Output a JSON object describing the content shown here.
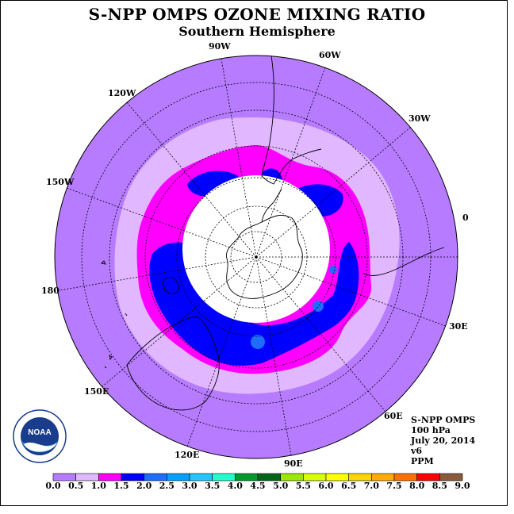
{
  "header": {
    "title": "S-NPP OMPS OZONE MIXING RATIO",
    "subtitle": "Southern Hemisphere"
  },
  "map": {
    "projection": "polar stereographic, south pole centered",
    "longitude_labels": [
      "90W",
      "60W",
      "30W",
      "0",
      "30E",
      "60E",
      "90E",
      "120E",
      "150E",
      "180",
      "150W",
      "120W"
    ],
    "fill_colors": {
      "outer": "#b77bff",
      "ring_0_5": "#e1b7ff",
      "ring_1_0": "#ff00ff",
      "ring_1_5": "#0000ff",
      "ring_2_0": "#1d6dff",
      "no_data": "#ffffff"
    }
  },
  "info": {
    "instrument": "S-NPP OMPS",
    "level": "100 hPa",
    "date": "July 20, 2014",
    "version": "v6",
    "units": "PPM"
  },
  "logo": {
    "text": "NOAA",
    "ring_text": "NATIONAL OCEANIC AND ATMOSPHERIC ADMINISTRATION · U.S. DEPARTMENT OF COMMERCE"
  },
  "colorbar": {
    "labels": [
      "0.0",
      "0.5",
      "1.0",
      "1.5",
      "2.0",
      "2.5",
      "3.0",
      "3.5",
      "4.0",
      "4.5",
      "5.0",
      "5.5",
      "6.0",
      "6.5",
      "7.0",
      "7.5",
      "8.0",
      "8.5",
      "9.0"
    ],
    "colors": [
      "#b77bff",
      "#e1b7ff",
      "#ff00ff",
      "#0000ff",
      "#1d6dff",
      "#00a0ff",
      "#20c8ff",
      "#1fffd0",
      "#009a2a",
      "#00661c",
      "#9ce800",
      "#d8ff00",
      "#ffff00",
      "#ffd400",
      "#ffaa00",
      "#ff7000",
      "#ff0000",
      "#8a5a3a"
    ]
  }
}
